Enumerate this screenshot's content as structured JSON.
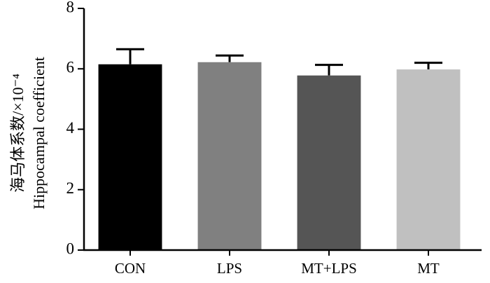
{
  "chart_data": {
    "type": "bar",
    "y_label_lines": [
      "海马体系数/×10⁻⁴",
      "Hippocampal coefficient"
    ],
    "categories": [
      "CON",
      "LPS",
      "MT+LPS",
      "MT"
    ],
    "values": [
      6.15,
      6.22,
      5.78,
      5.98
    ],
    "errors": [
      0.5,
      0.22,
      0.35,
      0.22
    ],
    "colors": [
      "#000000",
      "#808080",
      "#555555",
      "#c0c0c0"
    ],
    "ylim": [
      0,
      8
    ],
    "yticks": [
      0,
      2,
      4,
      6,
      8
    ],
    "grid": false
  }
}
